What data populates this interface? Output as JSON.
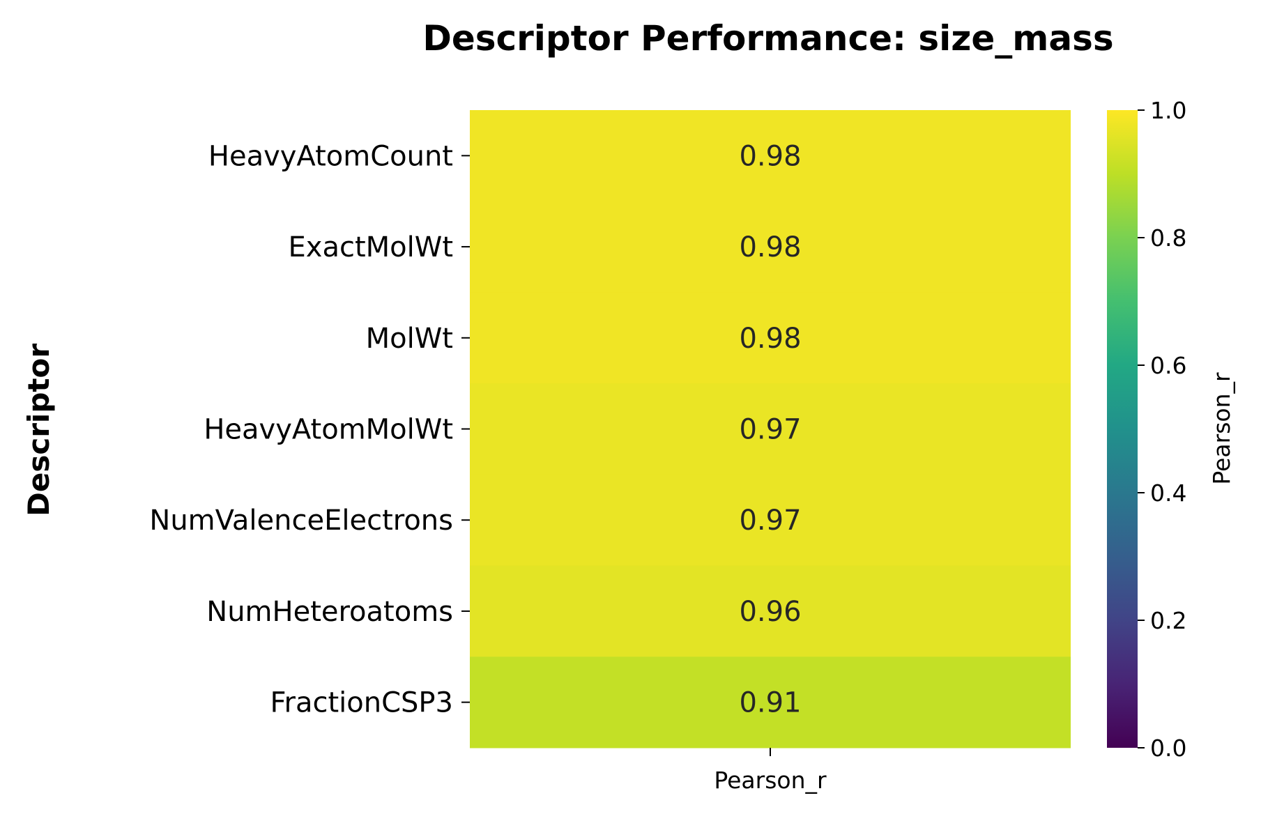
{
  "chart_data": {
    "type": "heatmap",
    "title": "Descriptor Performance: size_mass",
    "ylabel": "Descriptor",
    "xlabel": "",
    "columns": [
      "Pearson_r"
    ],
    "rows": [
      {
        "label": "HeavyAtomCount",
        "value": 0.98,
        "text": "0.98"
      },
      {
        "label": "ExactMolWt",
        "value": 0.98,
        "text": "0.98"
      },
      {
        "label": "MolWt",
        "value": 0.98,
        "text": "0.98"
      },
      {
        "label": "HeavyAtomMolWt",
        "value": 0.97,
        "text": "0.97"
      },
      {
        "label": "NumValenceElectrons",
        "value": 0.97,
        "text": "0.97"
      },
      {
        "label": "NumHeteroatoms",
        "value": 0.96,
        "text": "0.96"
      },
      {
        "label": "FractionCSP3",
        "value": 0.91,
        "text": "0.91"
      }
    ],
    "colormap": "viridis",
    "colorbar": {
      "label": "Pearson_r",
      "range": [
        0.0,
        1.0
      ],
      "ticks": [
        "0.0",
        "0.2",
        "0.4",
        "0.6",
        "0.8",
        "1.0"
      ]
    }
  }
}
